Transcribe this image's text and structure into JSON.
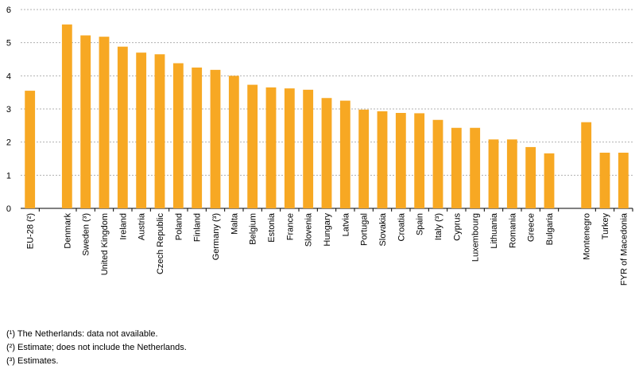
{
  "chart_data": {
    "type": "bar",
    "categories": [
      "EU-28 (²)",
      "Denmark",
      "Sweden (³)",
      "United Kingdom",
      "Ireland",
      "Austria",
      "Czech Republic",
      "Poland",
      "Finland",
      "Germany (³)",
      "Malta",
      "Belgium",
      "Estonia",
      "France",
      "Slovenia",
      "Hungary",
      "Latvia",
      "Portugal",
      "Slovakia",
      "Croatia",
      "Spain",
      "Italy (³)",
      "Cyprus",
      "Luxembourg",
      "Lithuania",
      "Romania",
      "Greece",
      "Bulgaria",
      "Montenegro",
      "Turkey",
      "FYR of Macedonia"
    ],
    "values": [
      3.55,
      5.55,
      5.22,
      5.18,
      4.88,
      4.7,
      4.65,
      4.38,
      4.25,
      4.18,
      4.0,
      3.73,
      3.65,
      3.62,
      3.58,
      3.33,
      3.25,
      2.98,
      2.93,
      2.88,
      2.87,
      2.67,
      2.43,
      2.43,
      2.08,
      2.08,
      1.85,
      1.66,
      2.6,
      1.68,
      1.68
    ],
    "group_breaks_after": [
      0,
      27
    ],
    "ylim": [
      0,
      6
    ],
    "yticks": [
      "0",
      "1",
      "2",
      "3",
      "4",
      "5",
      "6"
    ],
    "grid": true,
    "bar_color": "#f7a823",
    "grid_color": "#b0b0b0",
    "title": "",
    "xlabel": "",
    "ylabel": ""
  },
  "footnotes": [
    "(¹) The Netherlands: data not available.",
    "(²) Estimate; does not include the Netherlands.",
    "(³) Estimates."
  ]
}
